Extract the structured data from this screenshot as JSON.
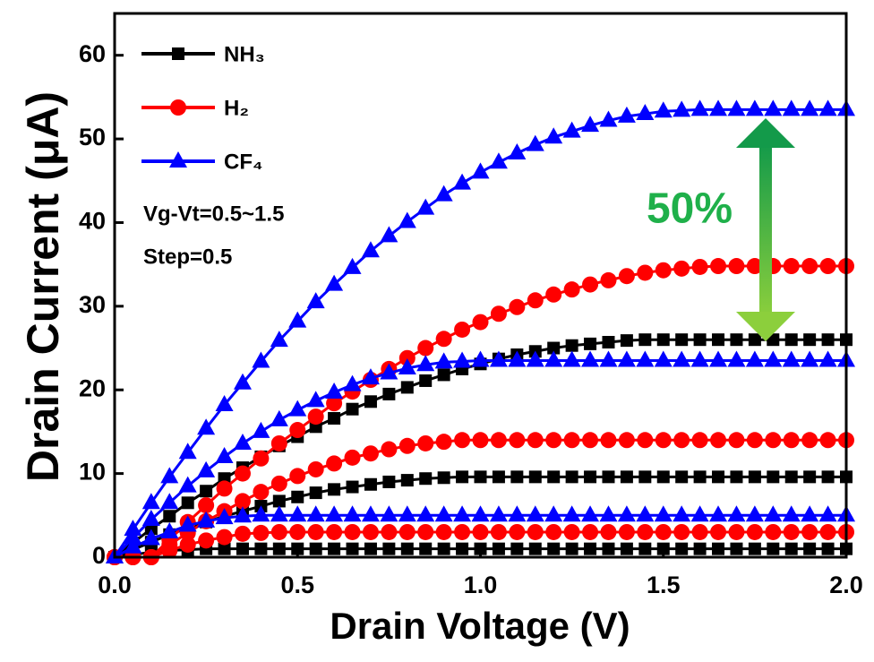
{
  "chart_data": {
    "type": "line",
    "xlabel": "Drain Voltage (V)",
    "ylabel": "Drain Current (μA)",
    "xlim": [
      0,
      2
    ],
    "ylim": [
      0,
      65
    ],
    "xticks": [
      {
        "value": 0,
        "label": "0.0"
      },
      0.5,
      {
        "value": 1,
        "label": "1.0"
      },
      1.5,
      {
        "value": 2,
        "label": "2.0"
      }
    ],
    "yticks": [
      0,
      10,
      20,
      30,
      40,
      50,
      60
    ],
    "legend": "upper left",
    "annotations": [
      "Vg-Vt=0.5~1.5",
      "Step=0.5",
      "50%"
    ],
    "x": [
      0,
      0.05,
      0.1,
      0.15,
      0.2,
      0.25,
      0.3,
      0.35,
      0.4,
      0.45,
      0.5,
      0.55,
      0.6,
      0.65,
      0.7,
      0.75,
      0.8,
      0.85,
      0.9,
      0.95,
      1,
      1.05,
      1.1,
      1.15,
      1.2,
      1.25,
      1.3,
      1.35,
      1.4,
      1.45,
      1.5,
      1.55,
      1.6,
      1.65,
      1.7,
      1.75,
      1.8,
      1.85,
      1.9,
      1.95,
      2
    ],
    "series": [
      {
        "name": "NH₃",
        "color": "#000000",
        "marker": "square",
        "curves": [
          {
            "values": [
              0,
              0.3,
              0.6,
              0.8,
              0.9,
              1.0,
              1,
              1,
              1,
              1,
              1,
              1,
              1,
              1,
              1,
              1,
              1,
              1,
              1,
              1,
              1,
              1,
              1,
              1,
              1,
              1,
              1,
              1,
              1,
              1,
              1,
              1,
              1,
              1,
              1,
              1,
              1,
              1,
              1,
              1,
              1
            ]
          },
          {
            "values": [
              0,
              0.9,
              1.8,
              2.7,
              3.5,
              4.2,
              4.9,
              5.5,
              6.1,
              6.7,
              7.2,
              7.7,
              8.1,
              8.4,
              8.7,
              9.0,
              9.2,
              9.4,
              9.5,
              9.6,
              9.6,
              9.6,
              9.6,
              9.6,
              9.6,
              9.6,
              9.6,
              9.6,
              9.6,
              9.6,
              9.6,
              9.6,
              9.6,
              9.6,
              9.6,
              9.6,
              9.6,
              9.6,
              9.6,
              9.6,
              9.6
            ]
          },
          {
            "values": [
              0,
              1.7,
              3.4,
              4.9,
              6.5,
              7.9,
              9.4,
              10.7,
              12.0,
              13.3,
              14.4,
              15.6,
              16.6,
              17.7,
              18.6,
              19.5,
              20.3,
              21.1,
              21.8,
              22.5,
              23.1,
              23.7,
              24.2,
              24.6,
              25.0,
              25.3,
              25.5,
              25.7,
              25.9,
              26.0,
              26,
              26,
              26,
              26,
              26,
              26,
              26,
              26,
              26,
              26,
              26
            ]
          }
        ]
      },
      {
        "name": "H₂",
        "color": "#ff0000",
        "marker": "circle",
        "curves": [
          {
            "values": [
              0,
              0,
              0,
              0.8,
              1.5,
              2.0,
              2.4,
              2.8,
              2.9,
              3,
              3,
              3,
              3,
              3,
              3,
              3,
              3,
              3,
              3,
              3,
              3,
              3,
              3,
              3,
              3,
              3,
              3,
              3,
              3,
              3,
              3,
              3,
              3,
              3,
              3,
              3,
              3,
              3,
              3,
              3,
              3
            ]
          },
          {
            "values": [
              0,
              0,
              0,
              1.5,
              2.9,
              4.3,
              5.5,
              6.7,
              7.8,
              8.8,
              9.7,
              10.5,
              11.2,
              11.9,
              12.4,
              12.9,
              13.3,
              13.6,
              13.8,
              14.0,
              14,
              14,
              14,
              14,
              14,
              14,
              14,
              14,
              14,
              14,
              14,
              14,
              14,
              14,
              14,
              14,
              14,
              14,
              14,
              14,
              14
            ]
          },
          {
            "values": [
              0,
              0,
              0,
              2.1,
              4.2,
              6.2,
              8.2,
              10.0,
              11.8,
              13.6,
              15.2,
              16.8,
              18.4,
              19.8,
              21.2,
              22.5,
              23.8,
              25.0,
              26.1,
              27.2,
              28.1,
              29.1,
              29.9,
              30.7,
              31.4,
              32.0,
              32.6,
              33.1,
              33.6,
              34.0,
              34.3,
              34.5,
              34.7,
              34.8,
              34.8,
              34.8,
              34.8,
              34.8,
              34.8,
              34.8,
              34.8
            ]
          }
        ]
      },
      {
        "name": "CF₄",
        "color": "#0000ff",
        "marker": "triangle",
        "curves": [
          {
            "values": [
              0,
              1.2,
              2.2,
              3.0,
              3.8,
              4.3,
              4.7,
              4.9,
              5,
              5,
              5,
              5,
              5,
              5,
              5,
              5,
              5,
              5,
              5,
              5,
              5,
              5,
              5,
              5,
              5,
              5,
              5,
              5,
              5,
              5,
              5,
              5,
              5,
              5,
              5,
              5,
              5,
              5,
              5,
              5,
              5
            ]
          },
          {
            "values": [
              0,
              2.3,
              4.5,
              6.5,
              8.5,
              10.3,
              12.0,
              13.6,
              15.0,
              16.4,
              17.6,
              18.7,
              19.7,
              20.6,
              21.4,
              22.0,
              22.6,
              23.0,
              23.3,
              23.4,
              23.5,
              23.5,
              23.5,
              23.5,
              23.5,
              23.5,
              23.5,
              23.5,
              23.5,
              23.5,
              23.5,
              23.5,
              23.5,
              23.5,
              23.5,
              23.5,
              23.5,
              23.5,
              23.5,
              23.5,
              23.5
            ]
          },
          {
            "values": [
              0,
              3.3,
              6.5,
              9.6,
              12.5,
              15.4,
              18.2,
              20.8,
              23.4,
              25.9,
              28.2,
              30.5,
              32.6,
              34.6,
              36.6,
              38.4,
              40.1,
              41.7,
              43.3,
              44.7,
              46.0,
              47.2,
              48.3,
              49.3,
              50.2,
              50.9,
              51.6,
              52.2,
              52.7,
              53.0,
              53.3,
              53.4,
              53.5,
              53.5,
              53.5,
              53.5,
              53.5,
              53.5,
              53.5,
              53.5,
              53.5
            ]
          }
        ]
      }
    ]
  }
}
